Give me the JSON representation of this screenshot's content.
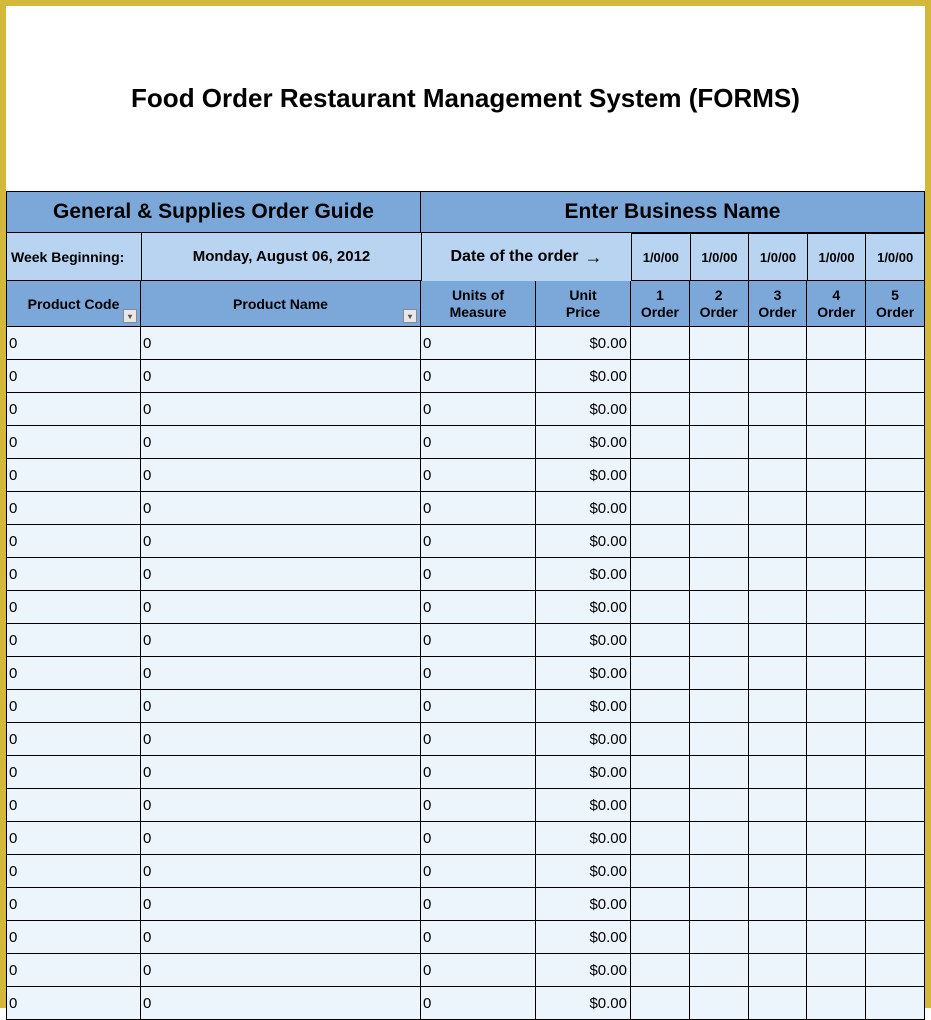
{
  "title": "Food Order Restaurant Management System (FORMS)",
  "top_left_header": "General & Supplies Order Guide",
  "top_right_header": "Enter Business Name",
  "week_label": "Week Beginning:",
  "week_date": "Monday, August 06, 2012",
  "date_order_label": "Date of the order",
  "arrow": "→",
  "dates": [
    "1/0/00",
    "1/0/00",
    "1/0/00",
    "1/0/00",
    "1/0/00"
  ],
  "columns": {
    "code": "Product Code",
    "name": "Product Name",
    "units": "Units of\nMeasure",
    "price": "Unit\nPrice",
    "orders": [
      "1\nOrder",
      "2\nOrder",
      "3\nOrder",
      "4\nOrder",
      "5\nOrder"
    ]
  },
  "row_count": 21,
  "default_row": {
    "code": "0",
    "name": "0",
    "units": "0",
    "price": "$0.00"
  },
  "colors": {
    "border": "#d4b83a",
    "header_dark": "#7ba7d9",
    "header_light": "#b8d4f0",
    "row_bg": "#ecf4fc",
    "grid": "#000000",
    "text": "#000000"
  },
  "fonts": {
    "title_size": 26,
    "header_size": 21,
    "col_header_size": 14,
    "cell_size": 15
  }
}
